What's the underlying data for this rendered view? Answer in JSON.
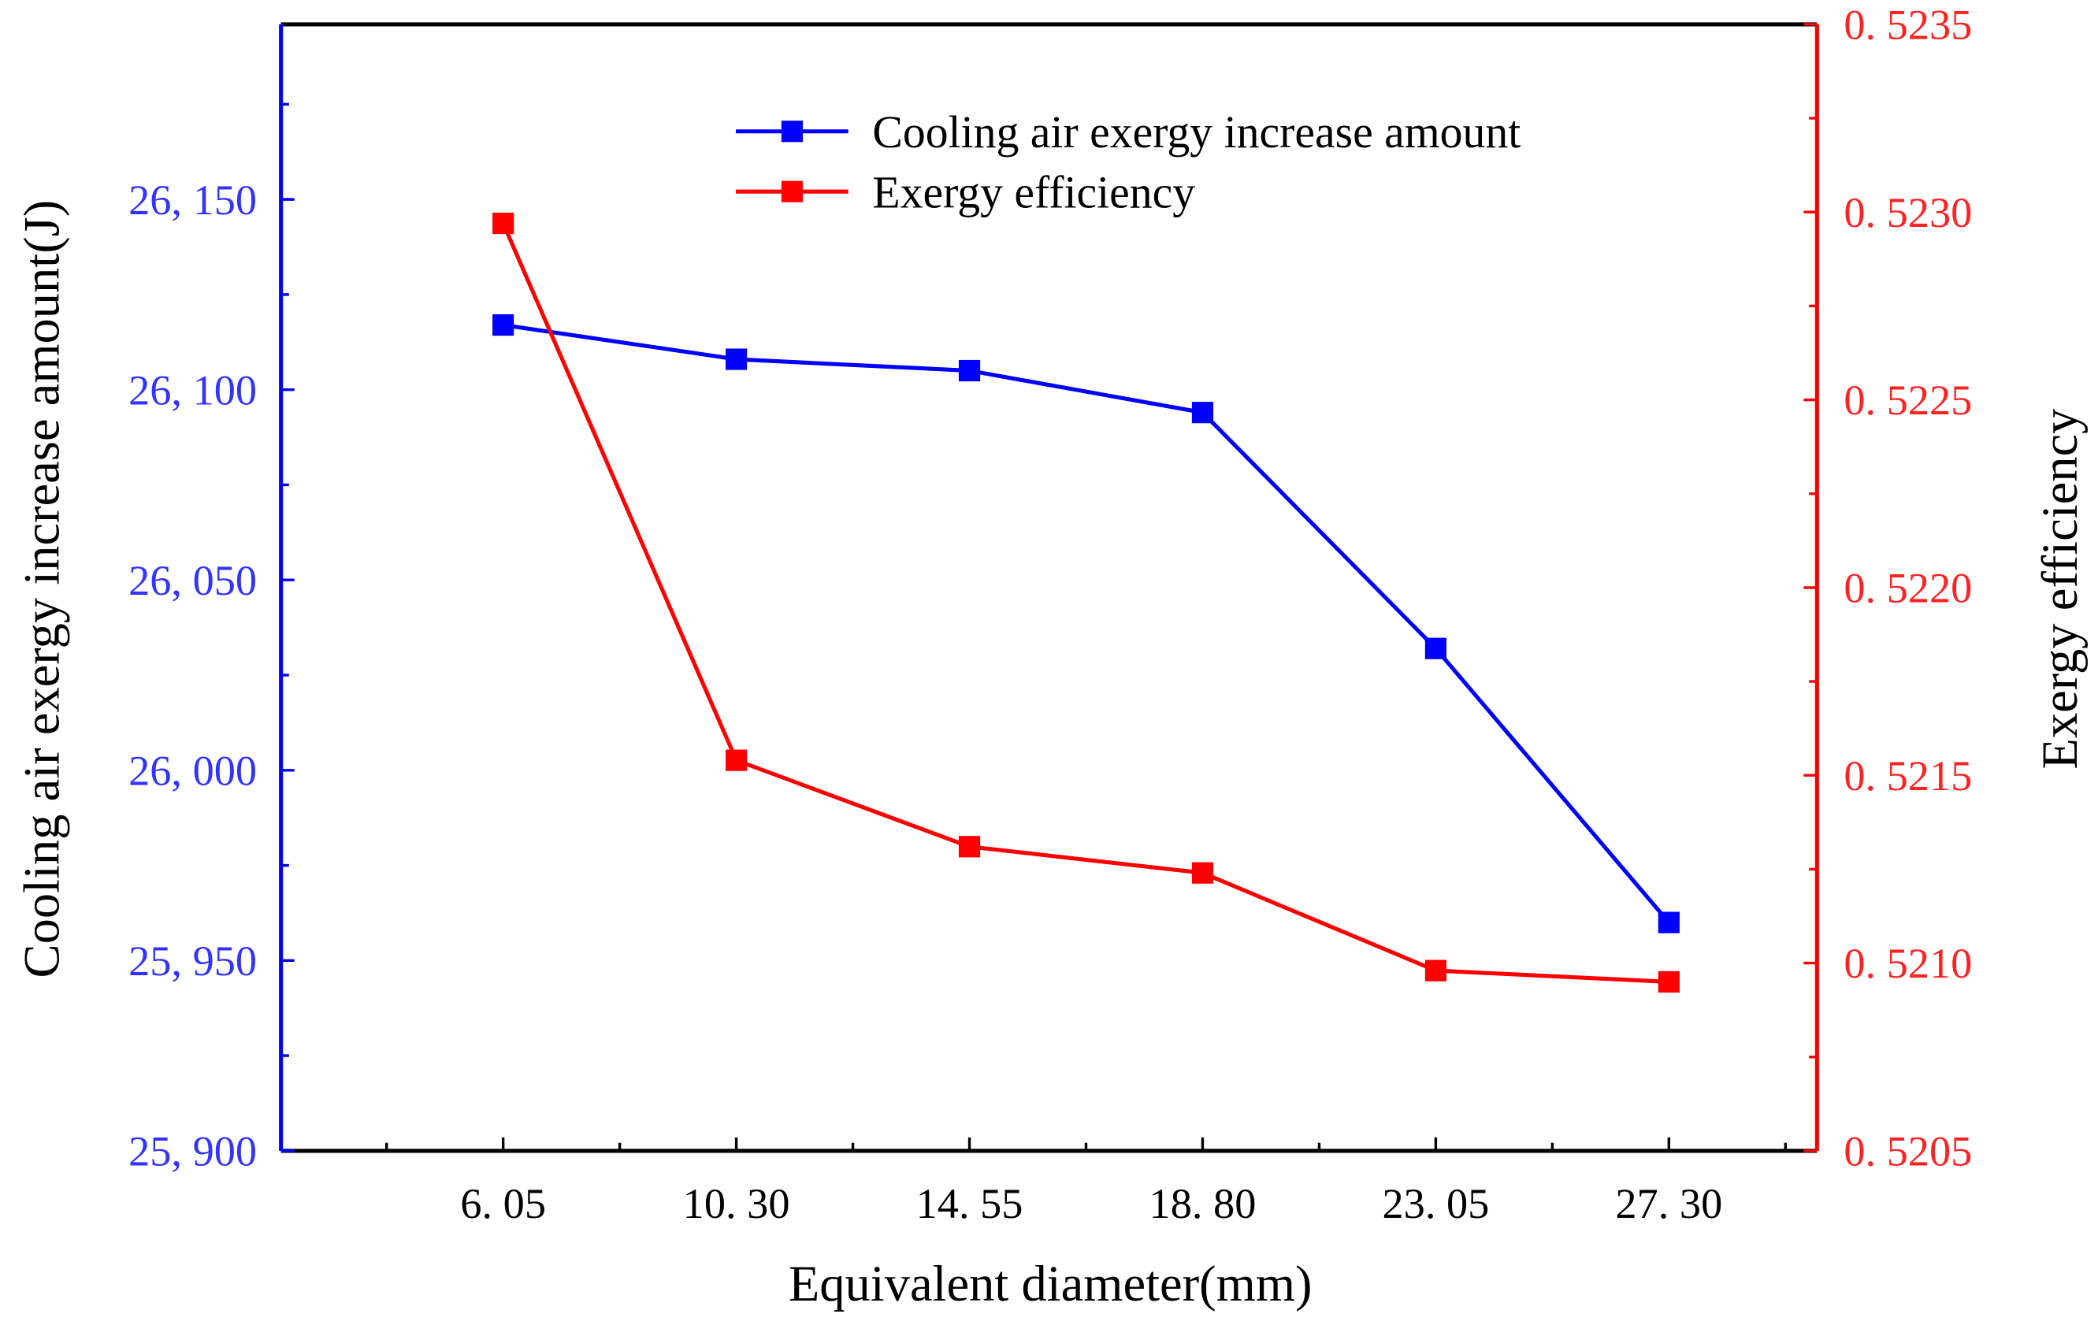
{
  "chart_data": {
    "type": "line",
    "xlabel": "Equivalent diameter(mm)",
    "ylabel_left": "Cooling air exergy increase amount(J)",
    "ylabel_right": "Exergy efficiency",
    "x": [
      6.05,
      10.3,
      14.55,
      18.8,
      23.05,
      27.3
    ],
    "x_tick_labels": [
      "6. 05",
      "10. 30",
      "14. 55",
      "18. 80",
      "23. 05",
      "27. 30"
    ],
    "xlim": [
      2,
      30
    ],
    "ylim_left": [
      25900,
      26196
    ],
    "ylim_right": [
      0.5205,
      0.5235
    ],
    "y_left_ticks": [
      25900,
      25950,
      26000,
      26050,
      26100,
      26150
    ],
    "y_left_tick_labels": [
      "25, 900",
      "25, 950",
      "26, 000",
      "26, 050",
      "26, 100",
      "26, 150"
    ],
    "y_right_ticks": [
      0.5205,
      0.521,
      0.5215,
      0.522,
      0.5225,
      0.523,
      0.5235
    ],
    "y_right_tick_labels": [
      "0. 5205",
      "0. 5210",
      "0. 5215",
      "0. 5220",
      "0. 5225",
      "0. 5230",
      "0. 5235"
    ],
    "grid": false,
    "legend_placement": "top-center",
    "series": [
      {
        "name": "Cooling air exergy increase amount",
        "axis": "left",
        "color": "#0000ff",
        "marker": "square",
        "values": [
          26117,
          26108,
          26105,
          26094,
          26032,
          25960
        ]
      },
      {
        "name": "Exergy efficiency",
        "axis": "right",
        "color": "#ff0000",
        "marker": "square",
        "values": [
          0.52297,
          0.52154,
          0.52131,
          0.52124,
          0.52098,
          0.52095
        ]
      }
    ],
    "colors": {
      "left_axis": "#0000ff",
      "right_axis": "#ff0000",
      "left_tick_text": "#3333ff",
      "right_tick_text": "#ff2222"
    }
  }
}
